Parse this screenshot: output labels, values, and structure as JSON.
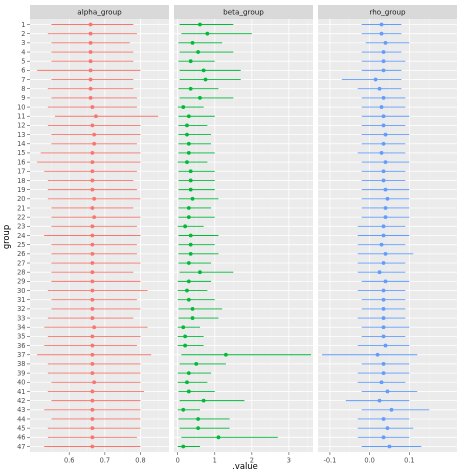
{
  "chart_data": {
    "type": "dot-interval",
    "ylabel": "group",
    "xlabel": ".value",
    "grid": true,
    "legend": "none",
    "groups": [
      "1",
      "2",
      "3",
      "4",
      "5",
      "6",
      "7",
      "8",
      "9",
      "10",
      "11",
      "12",
      "13",
      "14",
      "15",
      "16",
      "17",
      "18",
      "19",
      "20",
      "21",
      "22",
      "23",
      "24",
      "25",
      "26",
      "27",
      "28",
      "29",
      "30",
      "31",
      "32",
      "33",
      "34",
      "35",
      "36",
      "37",
      "38",
      "39",
      "40",
      "41",
      "42",
      "43",
      "44",
      "45",
      "46",
      "47"
    ],
    "panels": [
      {
        "name": "alpha_group",
        "color": "#F8766D",
        "xlim": [
          0.49,
          0.88
        ],
        "xticks": [
          0.6,
          0.7,
          0.8
        ],
        "xticklabels": [
          "0.6",
          "0.7",
          "0.8"
        ],
        "values": [
          0.66,
          0.66,
          0.66,
          0.66,
          0.66,
          0.66,
          0.66,
          0.66,
          0.66,
          0.665,
          0.675,
          0.665,
          0.67,
          0.67,
          0.665,
          0.665,
          0.665,
          0.665,
          0.665,
          0.67,
          0.665,
          0.67,
          0.665,
          0.665,
          0.665,
          0.665,
          0.665,
          0.665,
          0.665,
          0.665,
          0.665,
          0.665,
          0.665,
          0.67,
          0.665,
          0.665,
          0.665,
          0.665,
          0.665,
          0.67,
          0.665,
          0.665,
          0.665,
          0.665,
          0.665,
          0.665,
          0.665
        ],
        "lower": [
          0.55,
          0.54,
          0.55,
          0.55,
          0.55,
          0.51,
          0.55,
          0.54,
          0.55,
          0.54,
          0.56,
          0.54,
          0.55,
          0.55,
          0.52,
          0.51,
          0.53,
          0.54,
          0.54,
          0.54,
          0.55,
          0.55,
          0.55,
          0.53,
          0.55,
          0.55,
          0.55,
          0.55,
          0.55,
          0.54,
          0.55,
          0.55,
          0.54,
          0.53,
          0.54,
          0.53,
          0.51,
          0.54,
          0.54,
          0.55,
          0.54,
          0.55,
          0.53,
          0.55,
          0.54,
          0.54,
          0.53
        ],
        "upper": [
          0.78,
          0.79,
          0.77,
          0.78,
          0.78,
          0.8,
          0.78,
          0.78,
          0.79,
          0.79,
          0.85,
          0.8,
          0.8,
          0.79,
          0.8,
          0.8,
          0.79,
          0.78,
          0.79,
          0.8,
          0.78,
          0.8,
          0.79,
          0.8,
          0.79,
          0.79,
          0.8,
          0.78,
          0.8,
          0.82,
          0.79,
          0.8,
          0.78,
          0.82,
          0.8,
          0.79,
          0.83,
          0.8,
          0.8,
          0.8,
          0.81,
          0.8,
          0.8,
          0.8,
          0.8,
          0.79,
          0.8
        ]
      },
      {
        "name": "beta_group",
        "color": "#00BA38",
        "xlim": [
          -0.1,
          3.65
        ],
        "xticks": [
          0,
          1,
          2,
          3
        ],
        "xticklabels": [
          "0",
          "1",
          "2",
          "3"
        ],
        "values": [
          0.6,
          0.8,
          0.4,
          0.55,
          0.35,
          0.7,
          0.75,
          0.35,
          0.6,
          0.15,
          0.3,
          0.25,
          0.25,
          0.3,
          0.3,
          0.25,
          0.35,
          0.35,
          0.35,
          0.4,
          0.3,
          0.3,
          0.2,
          0.35,
          0.35,
          0.35,
          0.3,
          0.6,
          0.3,
          0.25,
          0.3,
          0.4,
          0.4,
          0.15,
          0.2,
          0.2,
          1.3,
          0.5,
          0.3,
          0.25,
          0.3,
          0.7,
          0.15,
          0.55,
          0.55,
          1.1,
          0.15
        ],
        "lower": [
          0.05,
          0.1,
          0.02,
          0.05,
          0.02,
          0.05,
          0.05,
          0.02,
          0.05,
          0.0,
          0.02,
          0.02,
          0.02,
          0.02,
          0.02,
          0.0,
          0.02,
          0.02,
          0.02,
          0.02,
          0.02,
          0.02,
          0.0,
          0.02,
          0.02,
          0.02,
          0.02,
          0.05,
          0.0,
          0.0,
          0.0,
          0.02,
          0.02,
          0.0,
          0.0,
          0.0,
          0.1,
          0.05,
          0.0,
          0.0,
          0.02,
          0.05,
          0.0,
          0.02,
          0.05,
          0.1,
          0.0
        ],
        "upper": [
          1.5,
          2.0,
          1.2,
          1.5,
          1.0,
          1.7,
          1.7,
          1.1,
          1.5,
          0.7,
          1.0,
          0.8,
          0.9,
          0.9,
          1.0,
          0.8,
          1.0,
          1.0,
          1.0,
          1.1,
          0.9,
          1.0,
          0.7,
          1.1,
          1.0,
          1.1,
          0.9,
          1.5,
          0.9,
          0.8,
          1.0,
          1.2,
          1.1,
          0.6,
          0.7,
          0.7,
          3.6,
          1.3,
          0.9,
          0.8,
          1.0,
          1.8,
          0.6,
          1.4,
          1.4,
          2.7,
          0.6
        ]
      },
      {
        "name": "rho_group",
        "color": "#619CFF",
        "xlim": [
          -0.13,
          0.22
        ],
        "xticks": [
          -0.1,
          0.0,
          0.1
        ],
        "xticklabels": [
          "-0.1",
          "0.0",
          "0.1"
        ],
        "values": [
          0.03,
          0.03,
          0.04,
          0.035,
          0.035,
          0.035,
          0.015,
          0.025,
          0.035,
          0.03,
          0.035,
          0.035,
          0.04,
          0.035,
          0.03,
          0.04,
          0.035,
          0.035,
          0.04,
          0.045,
          0.04,
          0.04,
          0.035,
          0.035,
          0.03,
          0.04,
          0.035,
          0.025,
          0.04,
          0.035,
          0.035,
          0.035,
          0.035,
          0.035,
          0.035,
          0.04,
          0.02,
          0.035,
          0.035,
          0.03,
          0.045,
          0.025,
          0.055,
          0.035,
          0.045,
          0.035,
          0.05
        ],
        "lower": [
          -0.02,
          -0.02,
          -0.01,
          -0.02,
          -0.02,
          -0.02,
          -0.07,
          -0.03,
          -0.02,
          -0.02,
          -0.02,
          -0.02,
          -0.02,
          -0.02,
          -0.03,
          -0.02,
          -0.02,
          -0.02,
          -0.02,
          -0.02,
          -0.02,
          -0.02,
          -0.03,
          -0.03,
          -0.03,
          -0.03,
          -0.03,
          -0.03,
          -0.02,
          -0.03,
          -0.02,
          -0.02,
          -0.03,
          -0.02,
          -0.02,
          -0.03,
          -0.12,
          -0.02,
          -0.03,
          -0.03,
          -0.02,
          -0.06,
          -0.02,
          -0.03,
          -0.03,
          -0.03,
          -0.02
        ],
        "upper": [
          0.08,
          0.08,
          0.1,
          0.08,
          0.09,
          0.08,
          0.08,
          0.08,
          0.09,
          0.09,
          0.1,
          0.09,
          0.1,
          0.09,
          0.09,
          0.1,
          0.09,
          0.09,
          0.1,
          0.1,
          0.1,
          0.1,
          0.09,
          0.1,
          0.09,
          0.11,
          0.09,
          0.09,
          0.1,
          0.09,
          0.09,
          0.09,
          0.09,
          0.1,
          0.09,
          0.1,
          0.12,
          0.1,
          0.1,
          0.09,
          0.12,
          0.1,
          0.15,
          0.1,
          0.11,
          0.1,
          0.13
        ]
      }
    ]
  }
}
